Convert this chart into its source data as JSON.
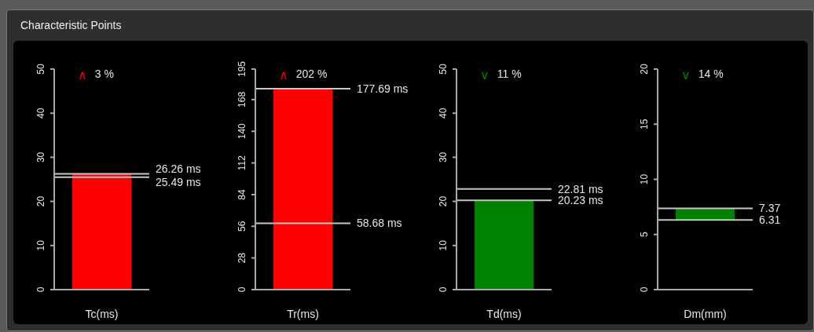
{
  "chart_data": [
    {
      "type": "bar",
      "title": "Characteristic Points",
      "xlabel": "Tc(ms)",
      "categories": [
        null
      ],
      "values": [
        26.26
      ],
      "color": "#ff0000",
      "ylim": [
        0,
        50
      ],
      "yticks": [
        0,
        10,
        20,
        30,
        40,
        50
      ],
      "ref_lines": [
        {
          "axis": "y",
          "value": 26.26,
          "label": "26.26 ms",
          "color": "#c8c8c8"
        },
        {
          "axis": "y",
          "value": 25.49,
          "label": "25.49 ms",
          "color": "#c8c8c8"
        }
      ],
      "annotations": [
        "∧",
        "3 %"
      ]
    },
    {
      "type": "bar",
      "xlabel": "Tr(ms)",
      "categories": [
        null
      ],
      "values": [
        177.69
      ],
      "color": "#ff0000",
      "ylim": [
        0,
        195
      ],
      "yticks": [
        0,
        28,
        56,
        84,
        112,
        140,
        168,
        195
      ],
      "ref_lines": [
        {
          "axis": "y",
          "value": 177.69,
          "label": "177.69 ms",
          "color": "#c8c8c8"
        },
        {
          "axis": "y",
          "value": 58.68,
          "label": "58.68 ms",
          "color": "#c8c8c8"
        }
      ],
      "annotations": [
        "∧",
        "202 %"
      ]
    },
    {
      "type": "bar",
      "xlabel": "Td(ms)",
      "categories": [
        null
      ],
      "values": [
        20.23
      ],
      "color": "#008000",
      "ylim": [
        0,
        50
      ],
      "yticks": [
        0,
        10,
        20,
        30,
        40,
        50
      ],
      "ref_lines": [
        {
          "axis": "y",
          "value": 22.81,
          "label": "22.81 ms",
          "color": "#c8c8c8"
        },
        {
          "axis": "y",
          "value": 20.23,
          "label": "20.23 ms",
          "color": "#c8c8c8"
        }
      ],
      "annotations": [
        "∨",
        "11 %"
      ]
    },
    {
      "type": "bar",
      "xlabel": "Dm(mm)",
      "categories": [
        null
      ],
      "base": [
        6.31
      ],
      "values": [
        1.06
      ],
      "color": "#008000",
      "ylim": [
        0,
        20
      ],
      "yticks": [
        0,
        5,
        10,
        15,
        20
      ],
      "ref_lines": [
        {
          "axis": "y",
          "value": 7.37,
          "label": "7.37",
          "color": "#c8c8c8"
        },
        {
          "axis": "y",
          "value": 6.31,
          "label": "6.31",
          "color": "#c8c8c8"
        }
      ],
      "annotations": [
        "∨",
        "14 %"
      ]
    }
  ]
}
